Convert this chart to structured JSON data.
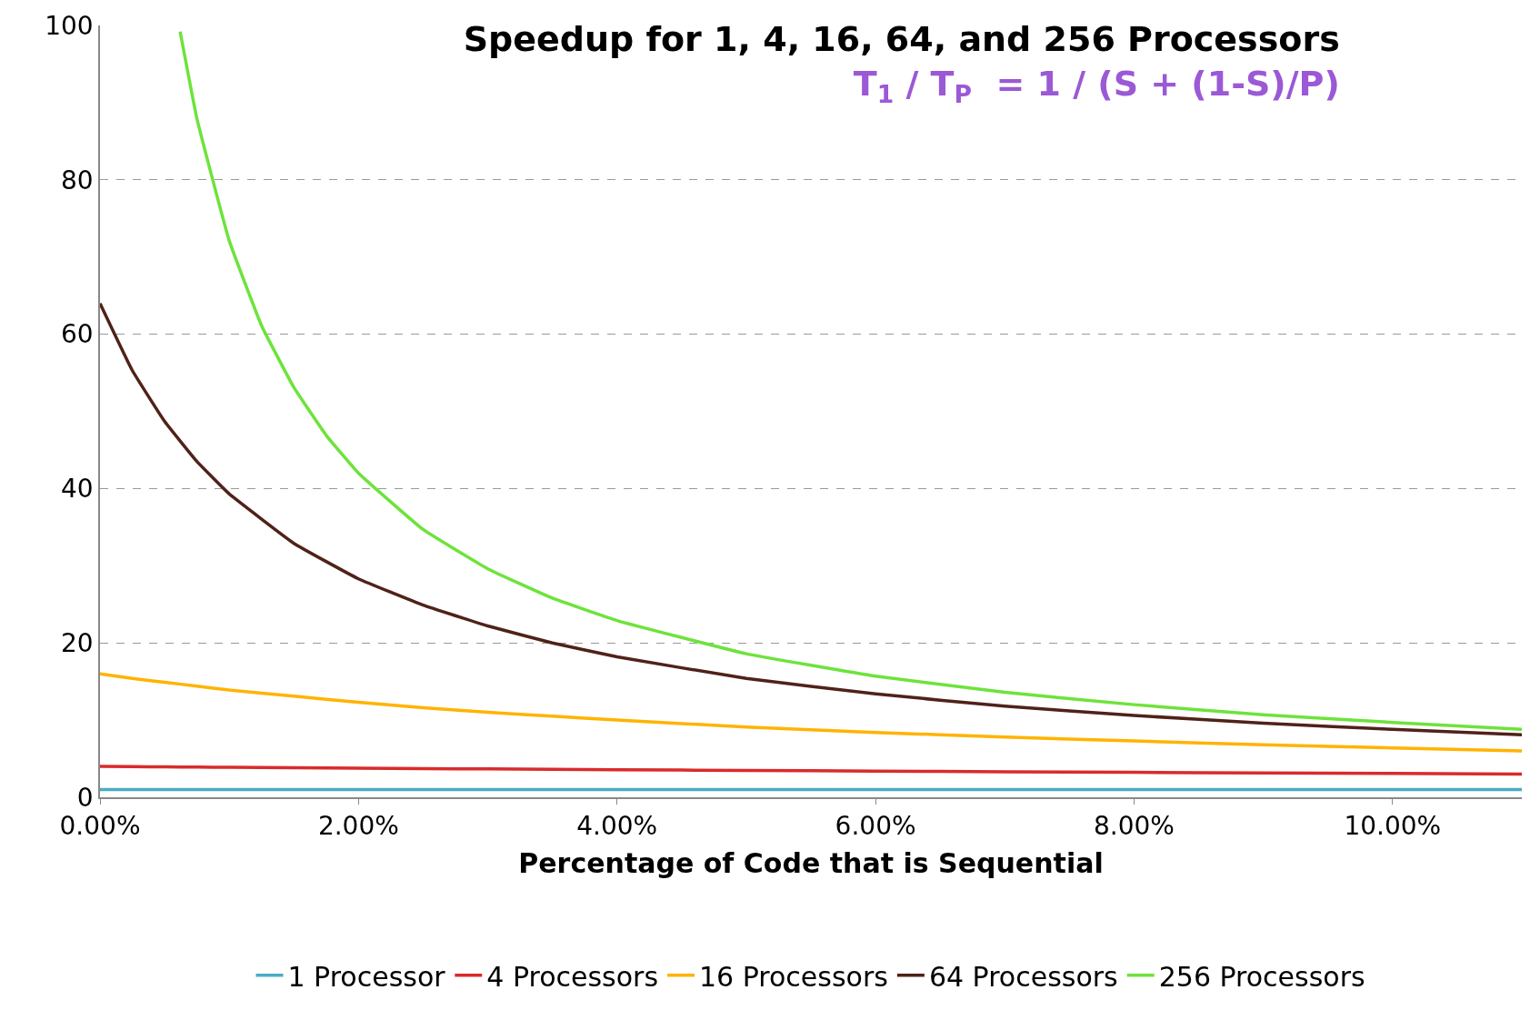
{
  "chart_data": {
    "type": "line",
    "title": "Speedup for 1, 4, 16, 64, and 256 Processors",
    "subtitle": "T$_{1}$ / T$_{P}$  = 1 / (S + (1-S)/P)",
    "xlabel": "Percentage of Code that is Sequential",
    "x": [
      0,
      0.25,
      0.5,
      0.75,
      1,
      1.5,
      2,
      2.5,
      3,
      3.5,
      4,
      5,
      6,
      7,
      8,
      9,
      10,
      11
    ],
    "series": [
      {
        "name": "1 Processor",
        "color": "#4bacc6",
        "values": [
          1,
          1,
          1,
          1,
          1,
          1,
          1,
          1,
          1,
          1,
          1,
          1,
          1,
          1,
          1,
          1,
          1,
          1
        ]
      },
      {
        "name": "4 Processors",
        "color": "#d92b2b",
        "values": [
          4,
          3.97,
          3.94,
          3.91,
          3.88,
          3.83,
          3.77,
          3.72,
          3.67,
          3.62,
          3.57,
          3.48,
          3.39,
          3.31,
          3.23,
          3.15,
          3.08,
          3.01
        ]
      },
      {
        "name": "16 Processors",
        "color": "#ffb300",
        "values": [
          16,
          15.4,
          14.9,
          14.4,
          13.9,
          13.1,
          12.3,
          11.6,
          11,
          10.5,
          10,
          9.1,
          8.4,
          7.8,
          7.3,
          6.8,
          6.4,
          6
        ]
      },
      {
        "name": "64 Processors",
        "color": "#4f2219",
        "values": [
          64,
          55.3,
          48.7,
          43.5,
          39.3,
          32.9,
          28.3,
          24.9,
          22.2,
          20,
          18.2,
          15.4,
          13.4,
          11.8,
          10.6,
          9.6,
          8.8,
          8.1
        ]
      },
      {
        "name": "256 Processors",
        "color": "#6de33b",
        "x": [
          0.62,
          0.75,
          1,
          1.25,
          1.5,
          1.75,
          2,
          2.5,
          3,
          3.5,
          4,
          5,
          6,
          7,
          8,
          9,
          10,
          11
        ],
        "values": [
          99.2,
          87.9,
          72.1,
          61.1,
          53.1,
          46.9,
          42,
          34.7,
          29.6,
          25.8,
          22.9,
          18.6,
          15.7,
          13.6,
          12,
          10.7,
          9.7,
          8.8
        ]
      }
    ],
    "xlim": [
      0,
      11
    ],
    "xticks": [
      {
        "value": 0,
        "label": "0.00%"
      },
      {
        "value": 2,
        "label": "2.00%"
      },
      {
        "value": 4,
        "label": "4.00%"
      },
      {
        "value": 6,
        "label": "6.00%"
      },
      {
        "value": 8,
        "label": "8.00%"
      },
      {
        "value": 10,
        "label": "10.00%"
      }
    ],
    "ylim": [
      0,
      100
    ],
    "yticks": [
      0,
      20,
      40,
      60,
      80,
      100
    ],
    "grid": "y",
    "legend": "bottom",
    "line_style": "solid",
    "marker": "none"
  }
}
